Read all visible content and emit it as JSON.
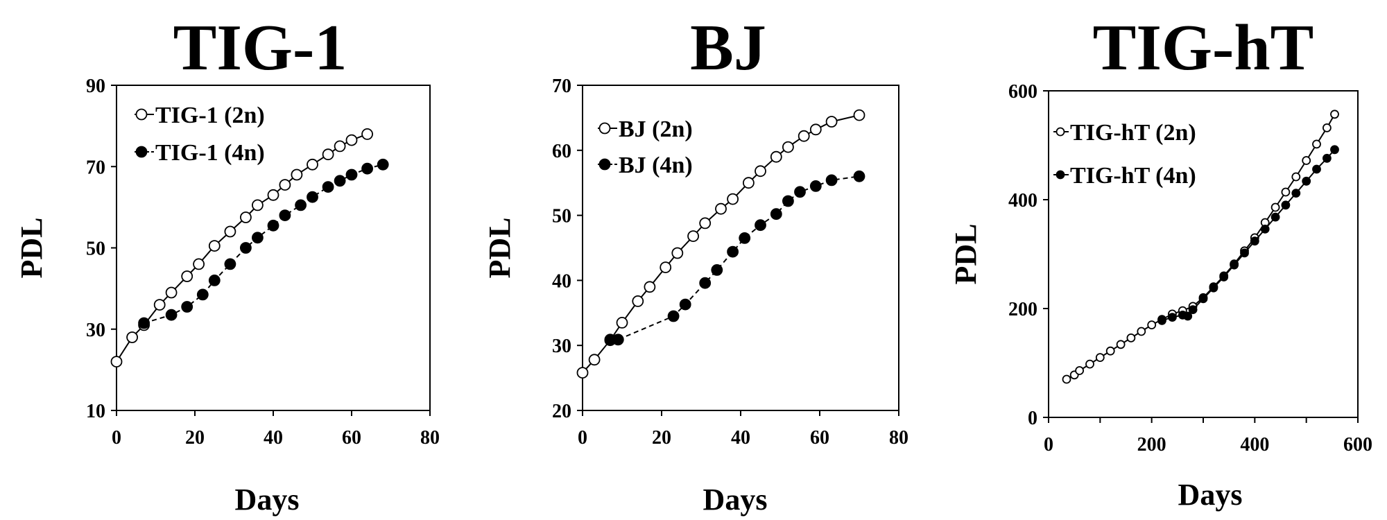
{
  "chart_data": [
    {
      "type": "line",
      "title": "TIG-1",
      "xlabel": "Days",
      "ylabel": "PDL",
      "xlim": [
        0,
        80
      ],
      "ylim": [
        10,
        90
      ],
      "xticks": [
        0,
        20,
        40,
        60,
        80
      ],
      "yticks": [
        10,
        30,
        50,
        70,
        90
      ],
      "legend_position": "top-left",
      "series": [
        {
          "name": "TIG-1 (2n)",
          "marker": "open-circle",
          "linestyle": "solid",
          "x": [
            0,
            4,
            7,
            11,
            14,
            18,
            21,
            25,
            29,
            33,
            36,
            40,
            43,
            46,
            50,
            54,
            57,
            60,
            64
          ],
          "y": [
            22,
            28,
            31,
            36,
            39,
            43,
            46,
            50.5,
            54,
            57.5,
            60.5,
            63,
            65.5,
            68,
            70.5,
            73,
            75,
            76.5,
            78
          ]
        },
        {
          "name": "TIG-1 (4n)",
          "marker": "filled-circle",
          "linestyle": "dashed",
          "x": [
            7,
            14,
            18,
            22,
            25,
            29,
            33,
            36,
            40,
            43,
            47,
            50,
            54,
            57,
            60,
            64,
            68
          ],
          "y": [
            31.5,
            33.5,
            35.5,
            38.5,
            42,
            46,
            50,
            52.5,
            55.5,
            58,
            60.5,
            62.5,
            65,
            66.5,
            68,
            69.5,
            70.5
          ]
        }
      ]
    },
    {
      "type": "line",
      "title": "BJ",
      "xlabel": "Days",
      "ylabel": "PDL",
      "xlim": [
        0,
        80
      ],
      "ylim": [
        20,
        70
      ],
      "xticks": [
        0,
        20,
        40,
        60,
        80
      ],
      "yticks": [
        20,
        30,
        40,
        50,
        60,
        70
      ],
      "legend_position": "top-left",
      "series": [
        {
          "name": "BJ (2n)",
          "marker": "open-circle",
          "linestyle": "solid",
          "x": [
            0,
            3,
            7,
            10,
            14,
            17,
            21,
            24,
            28,
            31,
            35,
            38,
            42,
            45,
            49,
            52,
            56,
            59,
            63,
            70
          ],
          "y": [
            25.8,
            27.8,
            30.8,
            33.5,
            36.8,
            39,
            42,
            44.2,
            46.8,
            48.8,
            51,
            52.5,
            55,
            56.8,
            59,
            60.5,
            62.2,
            63.2,
            64.4,
            65.4
          ]
        },
        {
          "name": "BJ (4n)",
          "marker": "filled-circle",
          "linestyle": "dashed",
          "x": [
            7,
            9,
            23,
            26,
            31,
            34,
            38,
            41,
            45,
            49,
            52,
            55,
            59,
            63,
            70
          ],
          "y": [
            30.9,
            30.9,
            34.5,
            36.3,
            39.6,
            41.6,
            44.4,
            46.5,
            48.5,
            50.2,
            52.2,
            53.6,
            54.5,
            55.4,
            56
          ]
        }
      ]
    },
    {
      "type": "line",
      "title": "TIG-hT",
      "xlabel": "Days",
      "ylabel": "PDL",
      "xlim": [
        0,
        600
      ],
      "ylim": [
        0,
        600
      ],
      "xticks": [
        0,
        200,
        400,
        600
      ],
      "yticks": [
        0,
        200,
        400,
        600
      ],
      "legend_position": "top-left",
      "series": [
        {
          "name": "TIG-hT (2n)",
          "marker": "open-circle",
          "linestyle": "solid",
          "x": [
            35,
            50,
            60,
            80,
            100,
            120,
            140,
            160,
            180,
            200,
            220,
            240,
            260,
            280,
            300,
            320,
            340,
            360,
            380,
            400,
            420,
            440,
            460,
            480,
            500,
            520,
            540,
            555
          ],
          "y": [
            70,
            78,
            86,
            98,
            110,
            122,
            134,
            146,
            158,
            170,
            180,
            190,
            196,
            204,
            220,
            240,
            260,
            282,
            306,
            330,
            358,
            386,
            414,
            442,
            472,
            502,
            532,
            557
          ]
        },
        {
          "name": "TIG-hT (4n)",
          "marker": "filled-circle",
          "linestyle": "solid",
          "x": [
            220,
            240,
            260,
            270,
            280,
            300,
            320,
            340,
            360,
            380,
            400,
            420,
            440,
            460,
            480,
            500,
            520,
            540,
            555
          ],
          "y": [
            178,
            184,
            188,
            186,
            198,
            218,
            238,
            258,
            280,
            302,
            324,
            346,
            368,
            390,
            412,
            434,
            456,
            476,
            492
          ]
        }
      ]
    }
  ]
}
